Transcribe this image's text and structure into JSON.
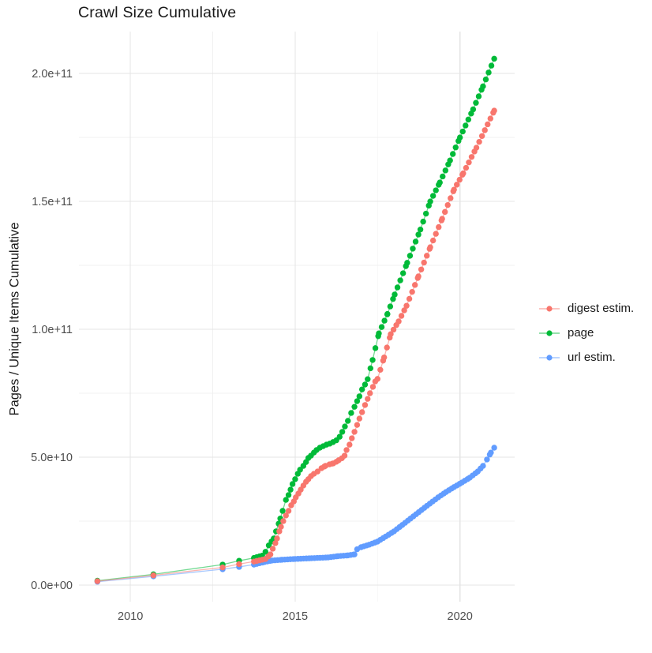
{
  "title": "Crawl Size Cumulative",
  "axes": {
    "y_label": "Pages / Unique Items Cumulative",
    "x_tick_values": [
      2010,
      2015,
      2020
    ],
    "x_tick_labels": [
      "2010",
      "2015",
      "2020"
    ],
    "x_minor_values": [
      2012.5,
      2017.5
    ],
    "y_tick_values": [
      0,
      50000000000.0,
      100000000000.0,
      150000000000.0,
      200000000000.0
    ],
    "y_tick_labels": [
      "0.0e+00",
      "5.0e+10",
      "1.0e+11",
      "1.5e+11",
      "2.0e+11"
    ],
    "y_minor_values": [
      25000000000.0,
      75000000000.0,
      125000000000.0,
      175000000000.0
    ]
  },
  "legend": {
    "items": [
      {
        "label": "digest estim.",
        "color": "#F8766D",
        "series": "digest estim."
      },
      {
        "label": "page",
        "color": "#00BA38",
        "series": "page"
      },
      {
        "label": "url estim.",
        "color": "#619CFF",
        "series": "url estim."
      }
    ]
  },
  "colors": {
    "digest": "#F8766D",
    "page": "#00BA38",
    "url": "#619CFF",
    "grid_major": "#e4e4e4",
    "grid_minor": "#f0f0f0",
    "tick_label": "#4d4d4d",
    "text": "#1a1a1a",
    "background": "#ffffff"
  },
  "chart_data": {
    "type": "line",
    "title": "Crawl Size Cumulative",
    "xlabel": "",
    "ylabel": "Pages / Unique Items Cumulative",
    "x_domain": [
      2008.44,
      2021.66
    ],
    "y_domain": [
      -6500000000.0,
      216400000000.0
    ],
    "grid": true,
    "legend_position": "right",
    "points_unit": 1000000000.0,
    "series": [
      {
        "name": "digest estim.",
        "color": "#F8766D",
        "points": [
          [
            2009.0,
            1.5
          ],
          [
            2010.7,
            3.8
          ],
          [
            2012.8,
            6.9
          ],
          [
            2013.3,
            8.2
          ],
          [
            2013.75,
            9.2
          ],
          [
            2014.1,
            10.2
          ],
          [
            2014.25,
            12.0
          ],
          [
            2014.32,
            14.2
          ],
          [
            2014.4,
            16.4
          ],
          [
            2014.45,
            18.2
          ],
          [
            2014.52,
            21.0
          ],
          [
            2014.57,
            22.8
          ],
          [
            2014.64,
            25.0
          ],
          [
            2014.72,
            27.2
          ],
          [
            2014.8,
            29.0
          ],
          [
            2014.88,
            31.2
          ],
          [
            2014.96,
            32.7
          ],
          [
            2015.02,
            34.3
          ],
          [
            2015.1,
            35.8
          ],
          [
            2015.17,
            37.3
          ],
          [
            2015.25,
            38.9
          ],
          [
            2015.33,
            40.4
          ],
          [
            2015.4,
            41.4
          ],
          [
            2015.48,
            42.6
          ],
          [
            2015.57,
            43.5
          ],
          [
            2015.68,
            44.4
          ],
          [
            2015.8,
            45.7
          ],
          [
            2015.92,
            46.6
          ],
          [
            2016.04,
            47.2
          ],
          [
            2016.16,
            47.6
          ],
          [
            2016.25,
            48.2
          ],
          [
            2016.32,
            48.8
          ],
          [
            2016.42,
            49.6
          ],
          [
            2016.5,
            50.6
          ],
          [
            2016.56,
            52.8
          ],
          [
            2016.65,
            54.9
          ],
          [
            2016.72,
            57.4
          ],
          [
            2016.8,
            59.9
          ],
          [
            2016.88,
            62.6
          ],
          [
            2016.95,
            65.1
          ],
          [
            2017.03,
            67.6
          ],
          [
            2017.12,
            70.4
          ],
          [
            2017.2,
            72.8
          ],
          [
            2017.27,
            75.0
          ],
          [
            2017.36,
            77.5
          ],
          [
            2017.43,
            79.6
          ],
          [
            2017.5,
            80.6
          ],
          [
            2017.7,
            89.0
          ],
          [
            2017.9,
            98.1
          ],
          [
            2018.14,
            103.1
          ],
          [
            2018.38,
            109.2
          ],
          [
            2018.74,
            120.7
          ],
          [
            2019.1,
            132.1
          ],
          [
            2019.46,
            143.2
          ],
          [
            2019.82,
            154.6
          ],
          [
            2020.1,
            161.0
          ],
          [
            2020.5,
            171.0
          ],
          [
            2021.04,
            185.5
          ]
        ]
      },
      {
        "name": "page",
        "color": "#00BA38",
        "points": [
          [
            2009.0,
            1.7
          ],
          [
            2010.7,
            4.2
          ],
          [
            2012.8,
            8.0
          ],
          [
            2013.3,
            9.5
          ],
          [
            2013.75,
            10.6
          ],
          [
            2014.0,
            11.5
          ],
          [
            2014.1,
            13.0
          ],
          [
            2014.2,
            15.5
          ],
          [
            2014.35,
            18.2
          ],
          [
            2014.42,
            21.0
          ],
          [
            2014.5,
            24.0
          ],
          [
            2014.55,
            26.0
          ],
          [
            2014.62,
            29.0
          ],
          [
            2014.72,
            33.3
          ],
          [
            2014.8,
            35.2
          ],
          [
            2014.86,
            37.3
          ],
          [
            2014.92,
            39.5
          ],
          [
            2015.0,
            41.4
          ],
          [
            2015.08,
            43.5
          ],
          [
            2015.15,
            45.1
          ],
          [
            2015.25,
            46.6
          ],
          [
            2015.33,
            48.1
          ],
          [
            2015.4,
            49.7
          ],
          [
            2015.48,
            50.6
          ],
          [
            2015.57,
            51.8
          ],
          [
            2015.65,
            52.8
          ],
          [
            2015.75,
            53.7
          ],
          [
            2015.85,
            54.3
          ],
          [
            2015.95,
            54.9
          ],
          [
            2016.05,
            55.3
          ],
          [
            2016.15,
            55.9
          ],
          [
            2016.25,
            56.6
          ],
          [
            2016.35,
            58.0
          ],
          [
            2016.43,
            59.9
          ],
          [
            2016.51,
            62.0
          ],
          [
            2016.6,
            64.2
          ],
          [
            2016.7,
            67.3
          ],
          [
            2016.8,
            69.7
          ],
          [
            2016.88,
            71.9
          ],
          [
            2016.95,
            73.8
          ],
          [
            2017.03,
            76.5
          ],
          [
            2017.12,
            78.4
          ],
          [
            2017.2,
            80.5
          ],
          [
            2017.35,
            88.0
          ],
          [
            2017.54,
            98.4
          ],
          [
            2017.8,
            106.0
          ],
          [
            2018.02,
            113.6
          ],
          [
            2018.4,
            126.0
          ],
          [
            2018.8,
            139.0
          ],
          [
            2019.1,
            150.0
          ],
          [
            2019.39,
            157.4
          ],
          [
            2019.7,
            166.0
          ],
          [
            2020.0,
            175.0
          ],
          [
            2020.4,
            186.0
          ],
          [
            2020.7,
            195.0
          ],
          [
            2021.04,
            205.8
          ]
        ]
      },
      {
        "name": "url estim.",
        "color": "#619CFF",
        "points": [
          [
            2009.0,
            1.3
          ],
          [
            2010.7,
            3.4
          ],
          [
            2012.8,
            6.2
          ],
          [
            2013.3,
            7.1
          ],
          [
            2013.75,
            8.0
          ],
          [
            2014.07,
            9.0
          ],
          [
            2014.3,
            9.6
          ],
          [
            2014.6,
            9.9
          ],
          [
            2015.0,
            10.2
          ],
          [
            2015.5,
            10.5
          ],
          [
            2016.0,
            10.8
          ],
          [
            2016.3,
            11.3
          ],
          [
            2016.6,
            11.6
          ],
          [
            2016.8,
            12.0
          ],
          [
            2016.88,
            14.0
          ],
          [
            2017.0,
            14.8
          ],
          [
            2017.25,
            15.8
          ],
          [
            2017.5,
            17.0
          ],
          [
            2017.75,
            19.0
          ],
          [
            2018.0,
            21.0
          ],
          [
            2018.25,
            23.5
          ],
          [
            2018.5,
            26.0
          ],
          [
            2018.75,
            28.5
          ],
          [
            2019.0,
            31.0
          ],
          [
            2019.34,
            34.3
          ],
          [
            2019.58,
            36.4
          ],
          [
            2019.82,
            38.3
          ],
          [
            2020.06,
            40.1
          ],
          [
            2020.3,
            42.0
          ],
          [
            2020.54,
            44.4
          ],
          [
            2020.7,
            46.6
          ],
          [
            2020.82,
            49.1
          ],
          [
            2020.94,
            51.8
          ],
          [
            2021.04,
            53.7
          ]
        ]
      }
    ]
  }
}
